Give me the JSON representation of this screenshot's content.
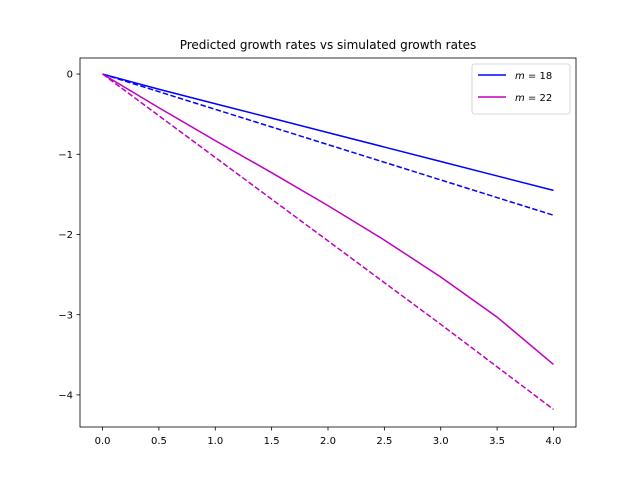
{
  "chart_data": {
    "type": "line",
    "title": "Predicted growth rates vs simulated growth rates",
    "xlabel": "",
    "ylabel": "",
    "xlim": [
      -0.2,
      4.2
    ],
    "ylim": [
      -4.4,
      0.2
    ],
    "xticks": [
      0.0,
      0.5,
      1.0,
      1.5,
      2.0,
      2.5,
      3.0,
      3.5,
      4.0
    ],
    "xtick_labels": [
      "0.0",
      "0.5",
      "1.0",
      "1.5",
      "2.0",
      "2.5",
      "3.0",
      "3.5",
      "4.0"
    ],
    "yticks": [
      0,
      -1,
      -2,
      -3,
      -4
    ],
    "ytick_labels": [
      "0",
      "−1",
      "−2",
      "−3",
      "−4"
    ],
    "grid": false,
    "legend_position": "top-right",
    "series": [
      {
        "name": "m = 18",
        "legend_var": "m",
        "legend_rest": " = 18",
        "color": "#0000ff",
        "style": "solid",
        "x": [
          0,
          0.5,
          1.0,
          1.5,
          2.0,
          2.5,
          3.0,
          3.5,
          4.0
        ],
        "y": [
          0,
          -0.19,
          -0.37,
          -0.55,
          -0.73,
          -0.91,
          -1.09,
          -1.27,
          -1.45
        ]
      },
      {
        "color": "#0000ff",
        "style": "dashed",
        "x": [
          0,
          0.5,
          1.0,
          1.5,
          2.0,
          2.5,
          3.0,
          3.5,
          4.0
        ],
        "y": [
          0,
          -0.22,
          -0.44,
          -0.66,
          -0.88,
          -1.1,
          -1.32,
          -1.54,
          -1.76
        ]
      },
      {
        "name": "m = 22",
        "legend_var": "m",
        "legend_rest": " = 22",
        "color": "#bf00bf",
        "style": "solid",
        "x": [
          0,
          0.5,
          1.0,
          1.5,
          2.0,
          2.5,
          3.0,
          3.5,
          4.0
        ],
        "y": [
          0,
          -0.42,
          -0.83,
          -1.23,
          -1.64,
          -2.07,
          -2.53,
          -3.03,
          -3.62
        ]
      },
      {
        "color": "#bf00bf",
        "style": "dashed",
        "x": [
          0,
          0.5,
          1.0,
          1.5,
          2.0,
          2.5,
          3.0,
          3.5,
          4.0
        ],
        "y": [
          0,
          -0.52,
          -1.04,
          -1.56,
          -2.08,
          -2.6,
          -3.12,
          -3.65,
          -4.18
        ]
      }
    ]
  }
}
